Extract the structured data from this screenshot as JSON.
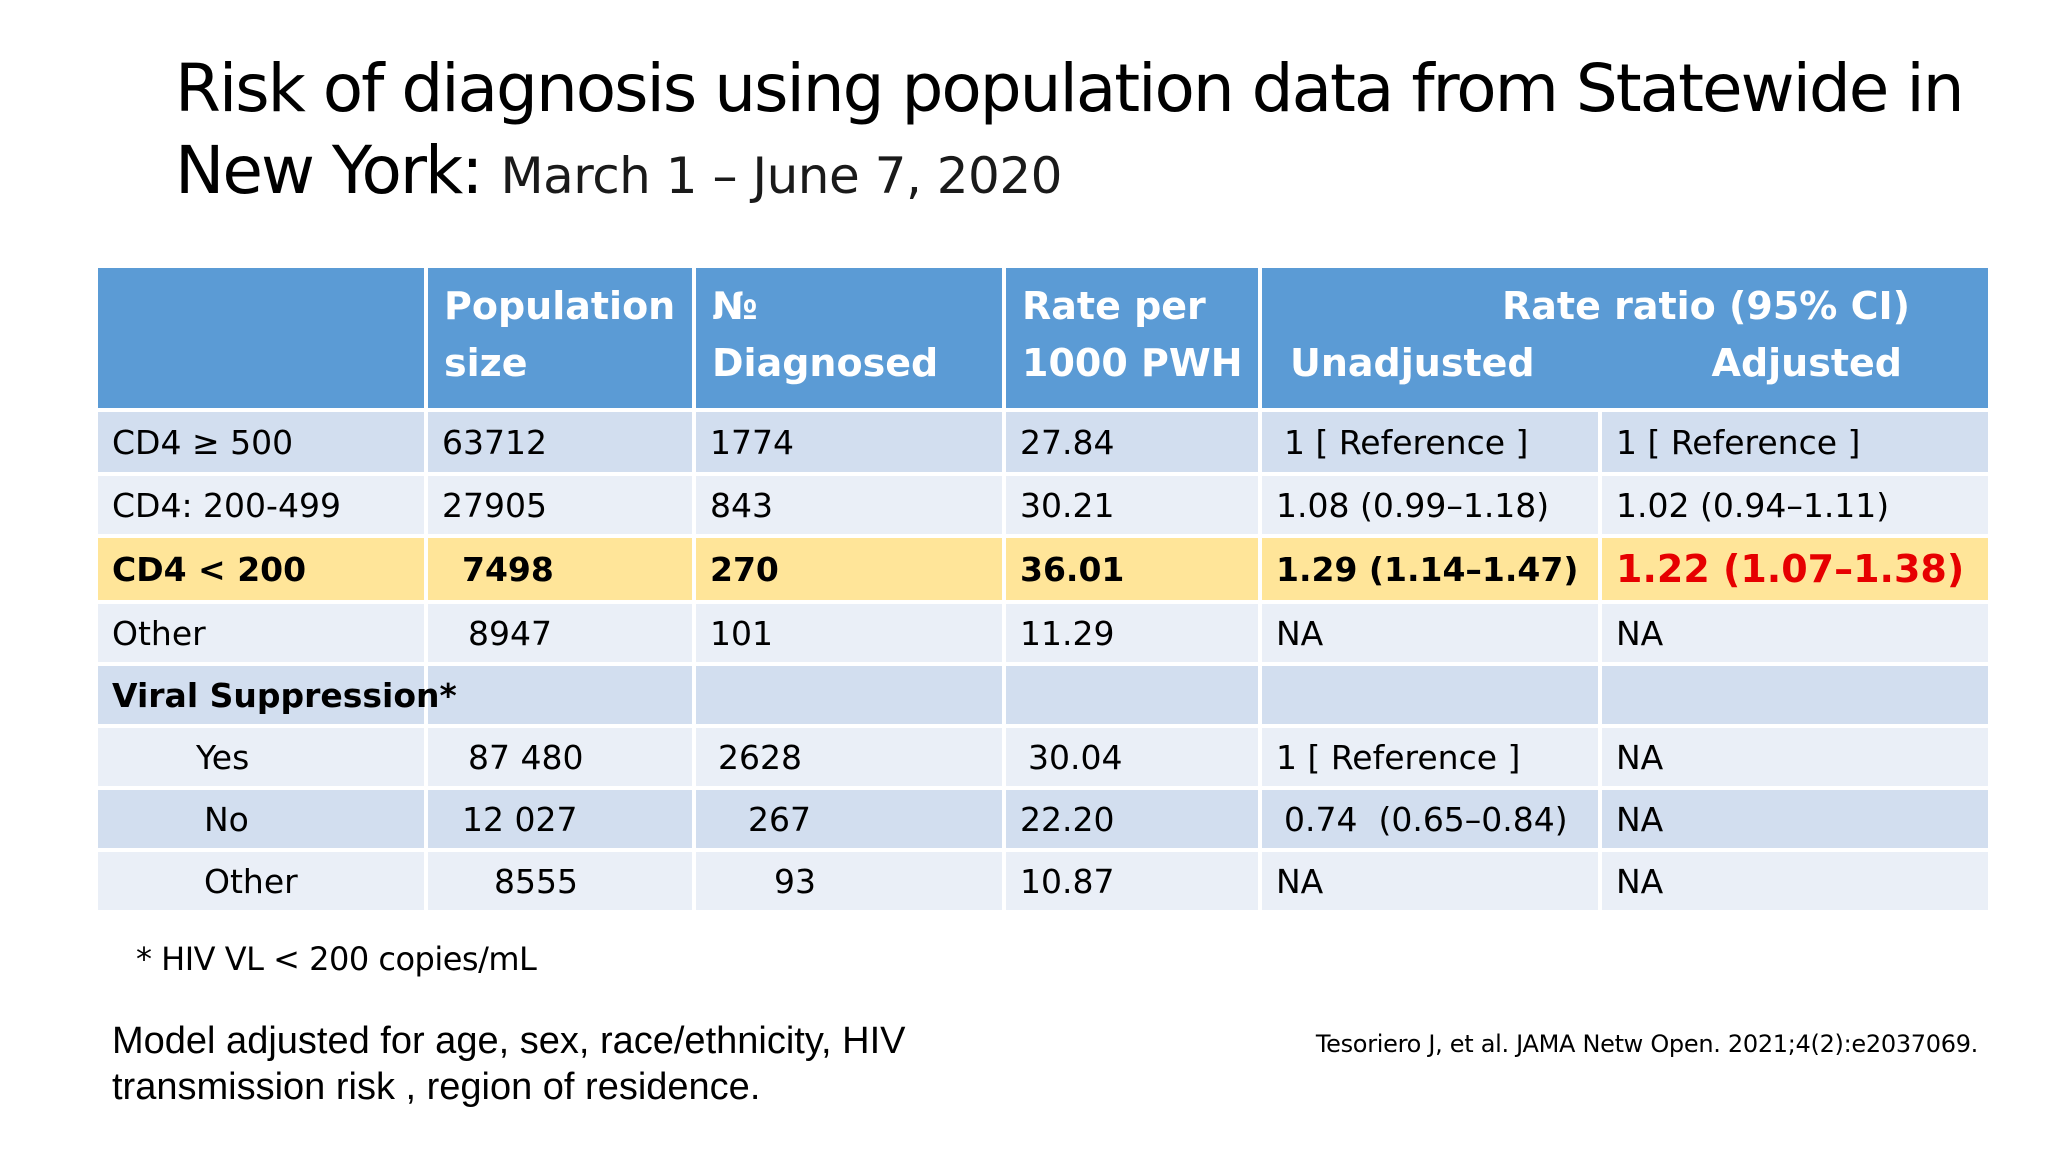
{
  "slide": {
    "title_main": "Risk of diagnosis using population data from Statewide in New York:",
    "title_sub": "March 1 – June 7, 2020"
  },
  "table": {
    "headers": {
      "population_line1": "Population",
      "population_line2": "size",
      "diagnosed": "№ Diagnosed",
      "rate_line1": "Rate per",
      "rate_line2": "1000 PWH",
      "rr_group": "Rate ratio (95% CI)",
      "unadjusted": "Unadjusted",
      "adjusted": "Adjusted"
    },
    "rows": [
      {
        "label": "CD4 ≥ 500",
        "population": "63712",
        "diagnosed": "1774",
        "rate": "27.84",
        "unadjusted": "1 [ Reference ]",
        "adjusted": "1 [ Reference ]"
      },
      {
        "label": "CD4: 200-499",
        "population": "27905",
        "diagnosed": "843",
        "rate": "30.21",
        "unadjusted": "1.08 (0.99–1.18)",
        "adjusted": "1.02 (0.94–1.11)"
      },
      {
        "label": "CD4 < 200",
        "population": "7498",
        "diagnosed": "270",
        "rate": "36.01",
        "unadjusted": "1.29 (1.14–1.47)",
        "adjusted": "1.22 (1.07–1.38)"
      },
      {
        "label": "Other",
        "population": "8947",
        "diagnosed": "101",
        "rate": "11.29",
        "unadjusted": "NA",
        "adjusted": "NA"
      },
      {
        "label": "Viral Suppression*",
        "population": "",
        "diagnosed": "",
        "rate": "",
        "unadjusted": "",
        "adjusted": ""
      },
      {
        "label": "Yes",
        "population": "87 480",
        "diagnosed": "2628",
        "rate": "30.04",
        "unadjusted": "1 [ Reference ]",
        "adjusted": "NA"
      },
      {
        "label": "No",
        "population": "12 027",
        "diagnosed": "267",
        "rate": "22.20",
        "unadjusted": "0.74  (0.65–0.84)",
        "adjusted": "NA"
      },
      {
        "label": "Other",
        "population": "8555",
        "diagnosed": "93",
        "rate": "10.87",
        "unadjusted": "NA",
        "adjusted": "NA"
      }
    ]
  },
  "footnote": "* HIV VL < 200 copies/mL",
  "model_note": "Model adjusted for age, sex, race/ethnicity, HIV transmission risk ,  region of residence.",
  "citation": "Tesoriero J, et al.  JAMA Netw Open. 2021;4(2):e2037069.",
  "colors": {
    "header_bg": "#5b9bd5",
    "row_dark": "#d2deef",
    "row_light": "#eaeff7",
    "highlight_row": "#ffe599",
    "highlight_value": "#e60000"
  }
}
